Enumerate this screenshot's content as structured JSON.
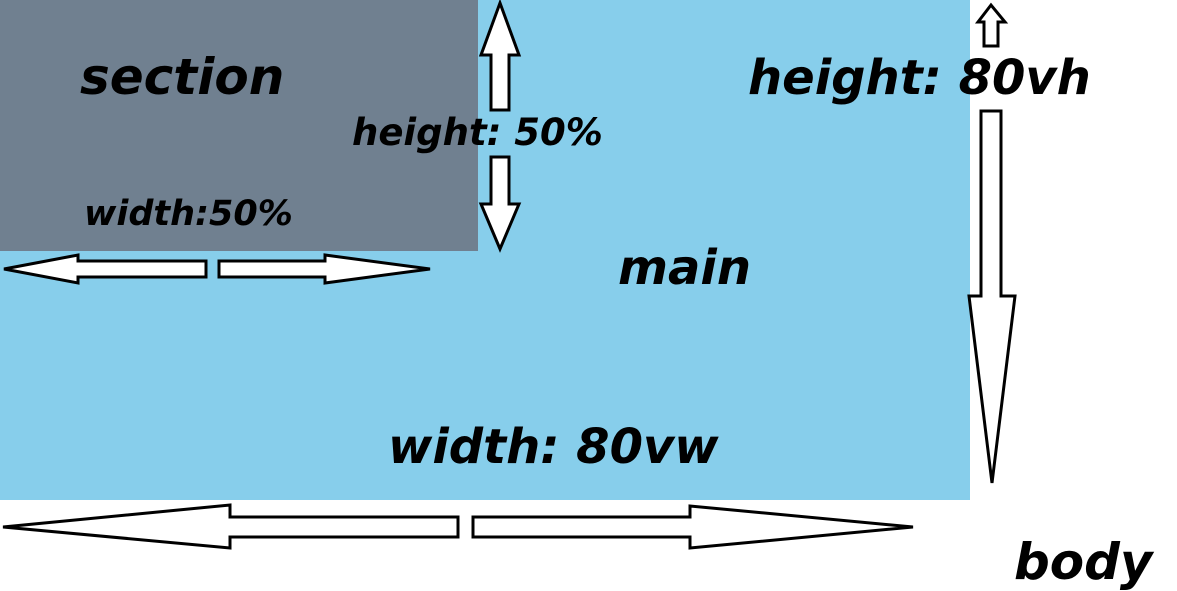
{
  "labels": {
    "section": "section",
    "section_height": "height: 50%",
    "section_width": "width:50%",
    "main": "main",
    "main_height": "height: 80vh",
    "main_width": "width: 80vw",
    "body": "body"
  },
  "colors": {
    "main_background": "#87ceeb",
    "section_background": "#708090",
    "body_background": "#ffffff"
  }
}
